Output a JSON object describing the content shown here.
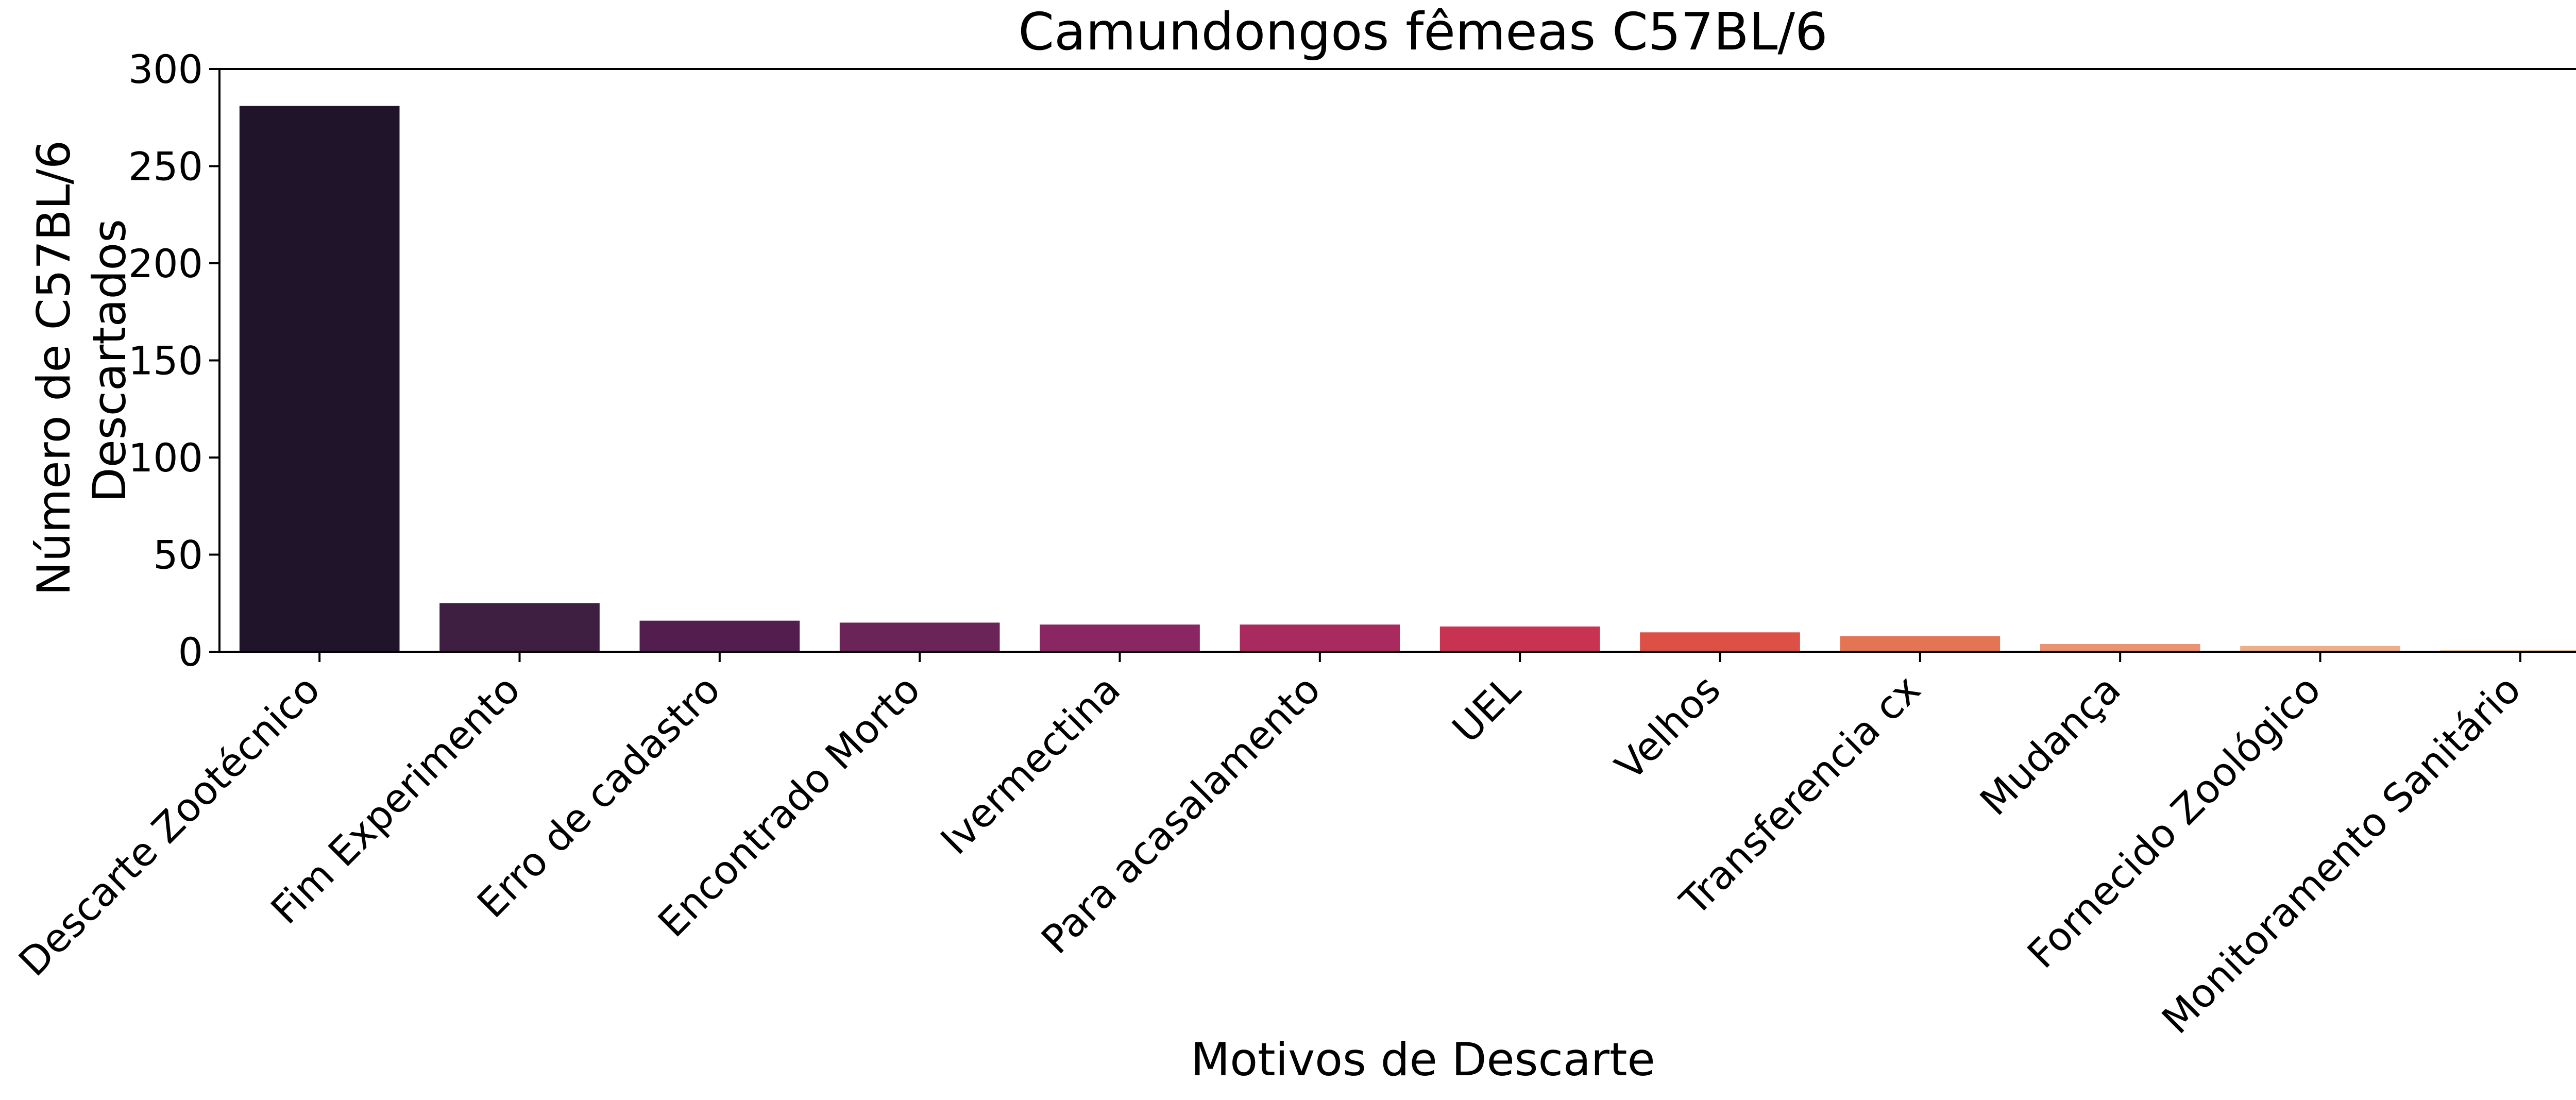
{
  "chart_data": {
    "type": "bar",
    "title": "Camundongos fêmeas C57BL/6",
    "xlabel": "Motivos de Descarte",
    "ylabel_lines": [
      "Número de C57BL/6",
      "Descartados"
    ],
    "categories": [
      "Descarte Zootécnico",
      "Fim Experimento",
      "Erro de cadastro",
      "Encontrado Morto",
      "Ivermectina",
      "Para acasalamento",
      "UEL",
      "Velhos",
      "Transferencia cx",
      "Mudança",
      "Fornecido Zoológico",
      "Monitoramento Sanitário"
    ],
    "values": [
      281,
      25,
      16,
      15,
      14,
      14,
      13,
      10,
      8,
      4,
      3,
      1
    ],
    "colors": [
      "#1f1429",
      "#3e1f41",
      "#531e4d",
      "#6b2458",
      "#8a2762",
      "#a92a5e",
      "#c73351",
      "#dc5046",
      "#e37454",
      "#e99370",
      "#edaf8b",
      "#f3cdae"
    ],
    "ylim": [
      0,
      300
    ],
    "yticks": [
      0,
      50,
      100,
      150,
      200,
      250,
      300
    ],
    "grid": false,
    "legend": "none"
  }
}
